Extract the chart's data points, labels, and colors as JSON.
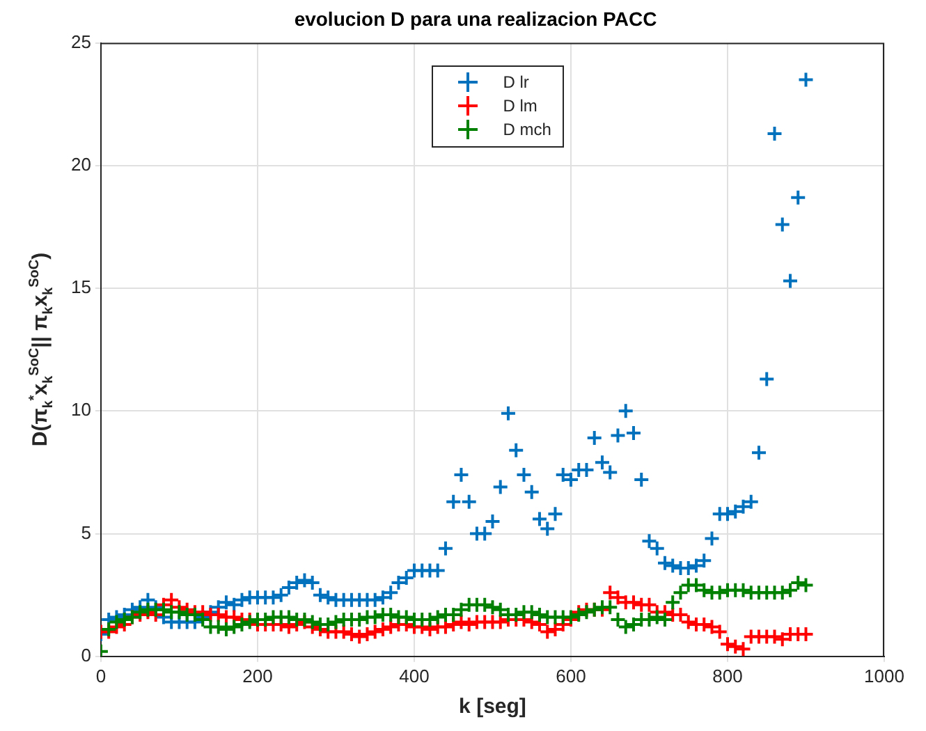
{
  "chart_data": {
    "type": "scatter",
    "title": "evolucion D para una realizacion PACC",
    "xlabel": "k [seg]",
    "ylabel": "D(π$_{k}$$^{*}$x$_{k}$$^{SoC}$|| π$_{k}$x$_{k}$$^{SoC}$)",
    "x": [
      0,
      10,
      20,
      30,
      40,
      50,
      60,
      70,
      80,
      90,
      100,
      110,
      120,
      130,
      140,
      150,
      160,
      170,
      180,
      190,
      200,
      210,
      220,
      230,
      240,
      250,
      260,
      270,
      280,
      290,
      300,
      310,
      320,
      330,
      340,
      350,
      360,
      370,
      380,
      390,
      400,
      410,
      420,
      430,
      440,
      450,
      460,
      470,
      480,
      490,
      500,
      510,
      520,
      530,
      540,
      550,
      560,
      570,
      580,
      590,
      600,
      610,
      620,
      630,
      640,
      650,
      660,
      670,
      680,
      690,
      700,
      710,
      720,
      730,
      740,
      750,
      760,
      770,
      780,
      790,
      800,
      810,
      820,
      830,
      840,
      850,
      860,
      870,
      880,
      890,
      900
    ],
    "series": [
      {
        "name": "D lr",
        "color": "#0072bd",
        "values": [
          0.9,
          1.5,
          1.6,
          1.7,
          1.9,
          2.0,
          2.3,
          2.0,
          1.6,
          1.4,
          1.4,
          1.4,
          1.4,
          1.6,
          1.8,
          2.0,
          2.2,
          2.1,
          2.3,
          2.4,
          2.4,
          2.4,
          2.4,
          2.5,
          2.8,
          3.0,
          3.1,
          3.0,
          2.5,
          2.4,
          2.3,
          2.3,
          2.3,
          2.3,
          2.3,
          2.3,
          2.4,
          2.6,
          3.0,
          3.2,
          3.5,
          3.5,
          3.5,
          3.5,
          4.4,
          6.3,
          7.4,
          6.3,
          5.0,
          5.0,
          5.5,
          6.9,
          9.9,
          8.4,
          7.4,
          6.7,
          5.6,
          5.2,
          5.8,
          7.4,
          7.2,
          7.6,
          7.6,
          8.9,
          7.9,
          7.5,
          9.0,
          10.0,
          9.1,
          7.2,
          4.7,
          4.4,
          3.8,
          3.7,
          3.6,
          3.6,
          3.7,
          3.9,
          4.8,
          5.8,
          5.8,
          5.9,
          6.1,
          6.3,
          8.3,
          11.3,
          21.3,
          17.6,
          15.3,
          18.7,
          23.5
        ]
      },
      {
        "name": "D lm",
        "color": "#ff0000",
        "values": [
          1.0,
          1.0,
          1.2,
          1.3,
          1.6,
          1.7,
          1.8,
          1.7,
          2.1,
          2.3,
          2.0,
          1.9,
          1.8,
          1.8,
          1.7,
          1.7,
          1.6,
          1.6,
          1.5,
          1.5,
          1.3,
          1.3,
          1.3,
          1.3,
          1.2,
          1.3,
          1.4,
          1.2,
          1.1,
          1.0,
          1.0,
          1.0,
          0.9,
          0.8,
          0.9,
          1.0,
          1.1,
          1.2,
          1.3,
          1.3,
          1.2,
          1.2,
          1.1,
          1.2,
          1.2,
          1.3,
          1.4,
          1.3,
          1.4,
          1.4,
          1.4,
          1.4,
          1.5,
          1.5,
          1.5,
          1.4,
          1.3,
          1.0,
          1.1,
          1.3,
          1.5,
          1.8,
          1.9,
          1.9,
          1.9,
          2.6,
          2.4,
          2.2,
          2.2,
          2.1,
          2.1,
          1.8,
          1.8,
          1.7,
          1.7,
          1.4,
          1.3,
          1.3,
          1.2,
          1.0,
          0.5,
          0.4,
          0.3,
          0.8,
          0.8,
          0.8,
          0.8,
          0.7,
          0.9,
          0.9,
          0.9
        ]
      },
      {
        "name": "D mch",
        "color": "#008000",
        "values": [
          0.2,
          1.1,
          1.4,
          1.5,
          1.6,
          1.8,
          1.9,
          1.9,
          1.9,
          1.8,
          1.8,
          1.7,
          1.7,
          1.5,
          1.2,
          1.2,
          1.1,
          1.2,
          1.3,
          1.4,
          1.5,
          1.5,
          1.6,
          1.6,
          1.6,
          1.5,
          1.5,
          1.4,
          1.3,
          1.3,
          1.4,
          1.5,
          1.5,
          1.5,
          1.6,
          1.6,
          1.7,
          1.7,
          1.6,
          1.6,
          1.5,
          1.5,
          1.5,
          1.6,
          1.7,
          1.7,
          1.9,
          2.1,
          2.1,
          2.1,
          2.0,
          1.9,
          1.7,
          1.7,
          1.8,
          1.8,
          1.7,
          1.6,
          1.6,
          1.6,
          1.6,
          1.7,
          1.8,
          1.9,
          2.0,
          2.0,
          1.5,
          1.2,
          1.3,
          1.5,
          1.5,
          1.6,
          1.5,
          2.2,
          2.6,
          2.9,
          2.9,
          2.7,
          2.6,
          2.6,
          2.7,
          2.7,
          2.7,
          2.6,
          2.6,
          2.6,
          2.6,
          2.6,
          2.7,
          3.0,
          2.9
        ]
      }
    ],
    "xlim": [
      0,
      1000
    ],
    "xticks": [
      0,
      200,
      400,
      600,
      800,
      1000
    ],
    "ylim": [
      0,
      25
    ],
    "yticks": [
      0,
      5,
      10,
      15,
      20,
      25
    ],
    "grid": true,
    "legend": "top",
    "marker": "cross"
  }
}
